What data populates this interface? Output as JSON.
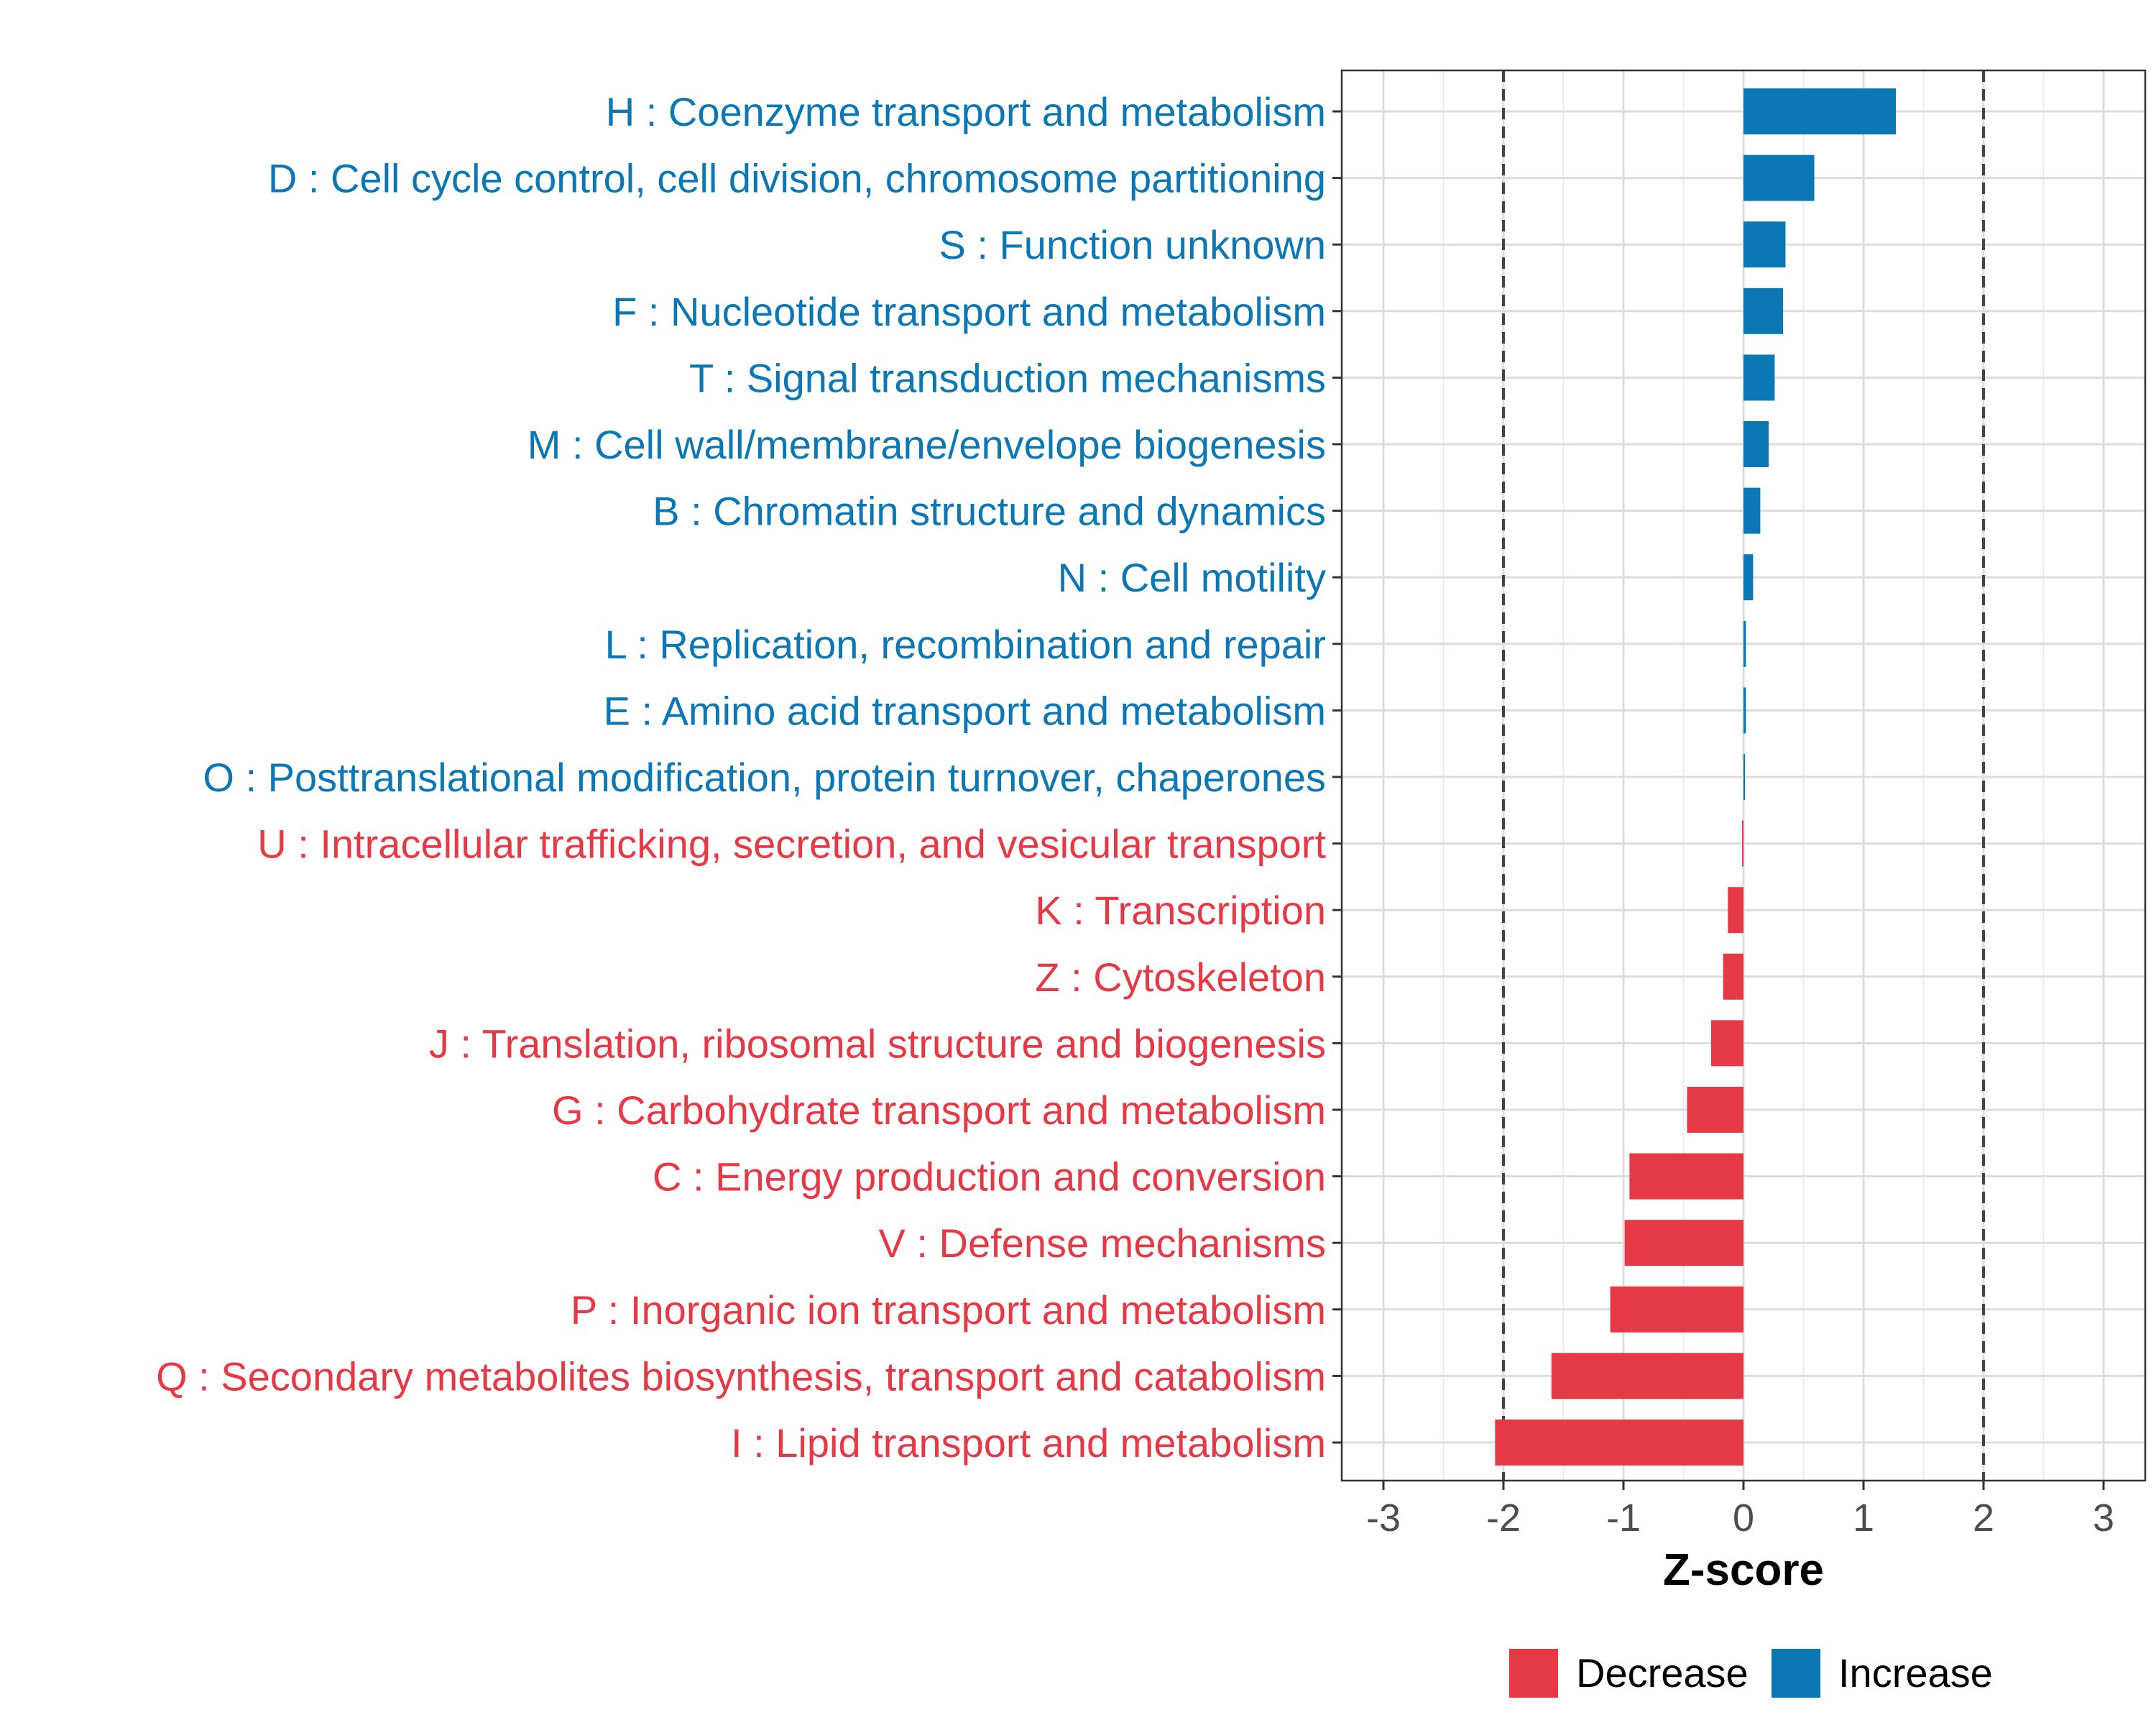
{
  "chart_data": {
    "type": "bar",
    "orientation": "horizontal",
    "title": "",
    "xlabel": "Z-score",
    "ylabel": "",
    "xlim": [
      -3.35,
      3.35
    ],
    "xticks": [
      -3,
      -2,
      -1,
      0,
      1,
      2,
      3
    ],
    "xtick_labels": [
      "-3",
      "-2",
      "-1",
      "0",
      "1",
      "2",
      "3"
    ],
    "reference_lines": [
      -2,
      2
    ],
    "grid": true,
    "legend_position": "bottom",
    "colors": {
      "Increase": "#0b77b5",
      "Decrease": "#e63946"
    },
    "legend": [
      {
        "name": "Decrease",
        "color": "#e63946"
      },
      {
        "name": "Increase",
        "color": "#0b77b5"
      }
    ],
    "categories": [
      "H : Coenzyme transport and metabolism",
      "D : Cell cycle control, cell division, chromosome partitioning",
      "S : Function unknown",
      "F : Nucleotide transport and metabolism",
      "T : Signal transduction mechanisms",
      "M : Cell wall/membrane/envelope biogenesis",
      "B : Chromatin structure and dynamics",
      "N : Cell motility",
      "L : Replication, recombination and repair",
      "E : Amino acid transport and metabolism",
      "O : Posttranslational modification, protein turnover, chaperones",
      "U : Intracellular trafficking, secretion, and vesicular transport",
      "K : Transcription",
      "Z : Cytoskeleton",
      "J : Translation, ribosomal structure and biogenesis",
      "G : Carbohydrate transport and metabolism",
      "C : Energy production and conversion",
      "V : Defense mechanisms",
      "P : Inorganic ion transport and metabolism",
      "Q : Secondary metabolites biosynthesis, transport and catabolism",
      "I : Lipid transport and metabolism"
    ],
    "values": [
      1.27,
      0.59,
      0.35,
      0.33,
      0.26,
      0.21,
      0.14,
      0.08,
      0.02,
      0.02,
      0.005,
      -0.005,
      -0.13,
      -0.17,
      -0.27,
      -0.47,
      -0.95,
      -0.99,
      -1.11,
      -1.6,
      -2.07
    ],
    "groups": [
      "Increase",
      "Increase",
      "Increase",
      "Increase",
      "Increase",
      "Increase",
      "Increase",
      "Increase",
      "Increase",
      "Increase",
      "Increase",
      "Decrease",
      "Decrease",
      "Decrease",
      "Decrease",
      "Decrease",
      "Decrease",
      "Decrease",
      "Decrease",
      "Decrease",
      "Decrease"
    ]
  }
}
